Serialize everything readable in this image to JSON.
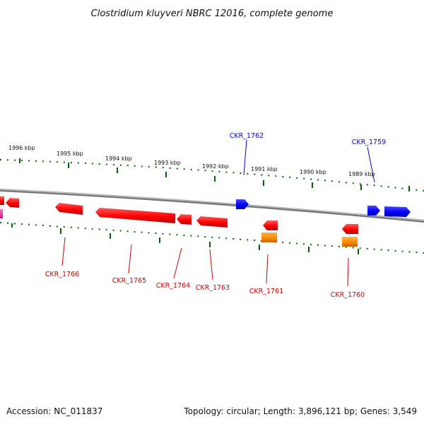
{
  "title": "Clostridium kluyveri NBRC 12016, complete genome",
  "footer": {
    "accession": "Accession: NC_011837",
    "topology": "Topology: circular; Length: 3,896,121 bp; Genes: 3,549"
  },
  "colors": {
    "forward_gene": "#0000ff",
    "reverse_gene": "#ff0000",
    "rna_gene": "#ff8c00",
    "pink_gene": "#ff2fa0",
    "scale_tick": "#006400",
    "backbone": "#888888"
  },
  "scale_labels": [
    "1996 kbp",
    "1995 kbp",
    "1994 kbp",
    "1993 kbp",
    "1992 kbp",
    "1991 kbp",
    "1990 kbp",
    "1989 kbp"
  ],
  "gene_labels": {
    "top": [
      "CKR_1762",
      "CKR_1759"
    ],
    "bottom": [
      "CKR_1766",
      "CKR_1765",
      "CKR_1764",
      "CKR_1763",
      "CKR_1761",
      "CKR_1760"
    ]
  }
}
